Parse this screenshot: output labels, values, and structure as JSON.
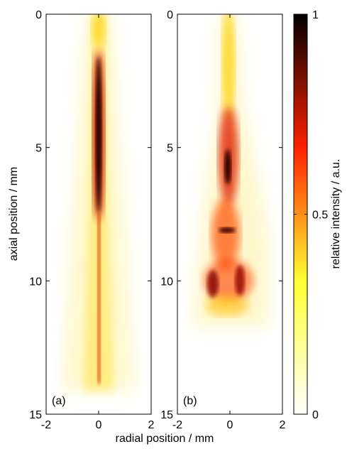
{
  "chart_data": {
    "type": "heatmap",
    "panels": [
      {
        "label": "(a)"
      },
      {
        "label": "(b)"
      }
    ],
    "xlabel": "radial position / mm",
    "ylabel": "axial position / mm",
    "xlim": [
      -2,
      2
    ],
    "xticks": [
      -2,
      0,
      2
    ],
    "ylim": [
      0,
      15
    ],
    "yticks": [
      0,
      5,
      10,
      15
    ],
    "y_inverted": true,
    "colorbar": {
      "label": "relative intensity / a.u.",
      "lim": [
        0,
        1
      ],
      "ticks": [
        0,
        0.5,
        1
      ],
      "colormap": [
        "#ffffff",
        "#ffff30",
        "#ff2000",
        "#000000"
      ]
    }
  }
}
